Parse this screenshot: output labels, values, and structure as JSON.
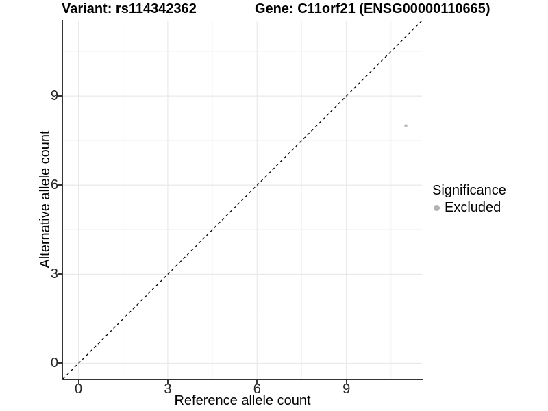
{
  "title": {
    "variant": "Variant: rs114342362",
    "gene": "Gene: C11orf21 (ENSG00000110665)"
  },
  "legend": {
    "title": "Significance",
    "items": [
      {
        "label": "Excluded",
        "color": "#b3b3b3"
      }
    ]
  },
  "chart_data": {
    "type": "scatter",
    "title": "Variant: rs114342362 | Gene: C11orf21 (ENSG00000110665)",
    "xlabel": "Reference allele count",
    "ylabel": "Alternative allele count",
    "xlim": [
      -0.52,
      11.54
    ],
    "ylim": [
      -0.52,
      11.54
    ],
    "x_ticks": [
      0,
      3,
      6,
      9
    ],
    "y_ticks": [
      0,
      3,
      6,
      9
    ],
    "x_minor_gridlines": [
      1.5,
      4.5,
      7.5,
      10.5
    ],
    "y_minor_gridlines": [
      1.5,
      4.5,
      7.5,
      10.5
    ],
    "grid": "on",
    "legend_position": "right",
    "series": [
      {
        "name": "Excluded",
        "color": "#bdbdbd",
        "marker_radius": 2.3,
        "points": [
          {
            "x": 11,
            "y": 8
          }
        ]
      }
    ],
    "reference_line": {
      "kind": "identity y=x",
      "style": "dashed",
      "color": "#000000",
      "from": [
        -0.52,
        -0.52
      ],
      "to": [
        11.54,
        11.54
      ]
    },
    "colors": {
      "major_grid": "#e9e9e9",
      "minor_grid": "#f3f3f3",
      "axis_line": "#353535",
      "tick_text": "#262626"
    }
  }
}
